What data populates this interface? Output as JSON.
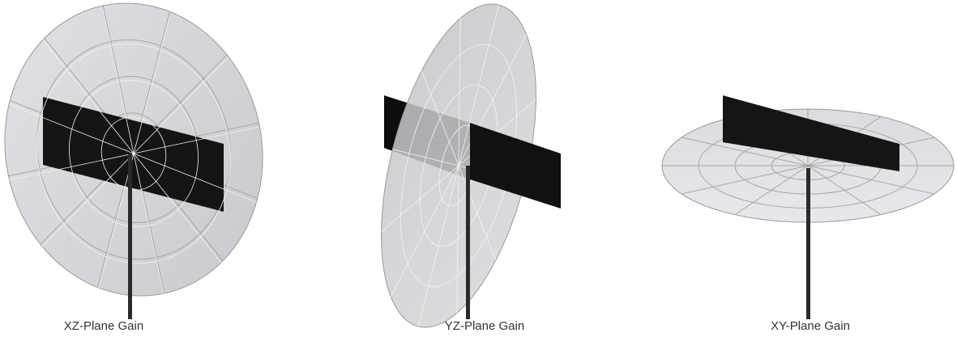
{
  "captions": [
    "XZ-Plane Gain",
    "YZ-Plane Gain",
    "XY-Plane Gain"
  ]
}
